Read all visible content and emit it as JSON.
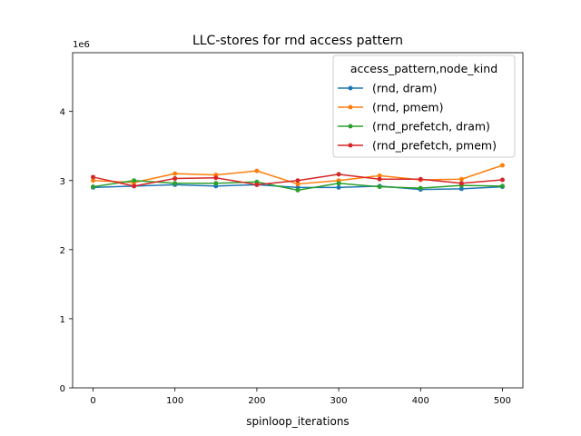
{
  "chart_data": {
    "type": "line",
    "title": "LLC-stores for rnd access pattern",
    "xlabel": "spinloop_iterations",
    "ylabel": "",
    "y_scale_label": "1e6",
    "y_multiplier": 1000000,
    "xlim": [
      -25,
      525
    ],
    "ylim": [
      0,
      4.85
    ],
    "x_ticks": [
      0,
      100,
      200,
      300,
      400,
      500
    ],
    "y_ticks": [
      0,
      1,
      2,
      3,
      4
    ],
    "grid": false,
    "legend_title": "access_pattern,node_kind",
    "legend_position": "upper right",
    "x": [
      0,
      50,
      100,
      150,
      200,
      250,
      300,
      350,
      400,
      450,
      500
    ],
    "series": [
      {
        "name": "(rnd, dram)",
        "color": "#1f77b4",
        "values": [
          2.9,
          2.92,
          2.94,
          2.92,
          2.94,
          2.9,
          2.9,
          2.92,
          2.87,
          2.88,
          2.91
        ]
      },
      {
        "name": "(rnd, pmem)",
        "color": "#ff7f0e",
        "values": [
          3.0,
          2.97,
          3.1,
          3.08,
          3.14,
          2.95,
          3.0,
          3.07,
          3.01,
          3.02,
          3.22
        ]
      },
      {
        "name": "(rnd_prefetch, dram)",
        "color": "#2ca02c",
        "values": [
          2.91,
          3.0,
          2.96,
          2.96,
          2.98,
          2.86,
          2.96,
          2.91,
          2.89,
          2.93,
          2.92
        ]
      },
      {
        "name": "(rnd_prefetch, pmem)",
        "color": "#d62728",
        "values": [
          3.05,
          2.92,
          3.03,
          3.04,
          2.94,
          3.0,
          3.09,
          3.02,
          3.02,
          2.96,
          3.01
        ]
      }
    ]
  }
}
